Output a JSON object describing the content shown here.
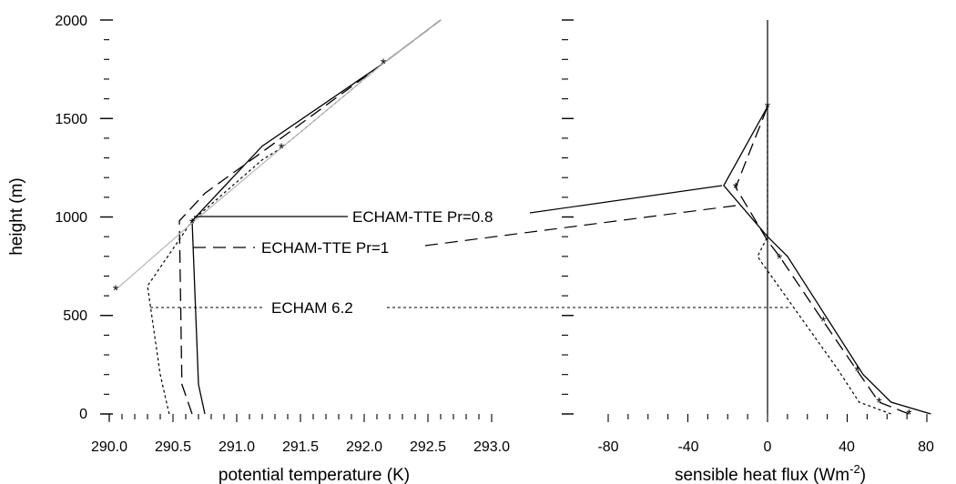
{
  "chart_data": [
    {
      "type": "line",
      "xlabel": "potential temperature (K)",
      "ylabel": "height (m)",
      "xlim": [
        290.0,
        293.0
      ],
      "ylim": [
        0,
        2000
      ],
      "xticks": [
        "290.0",
        "290.5",
        "291.0",
        "291.5",
        "292.0",
        "292.5",
        "293.0"
      ],
      "yticks": [
        "0",
        "500",
        "1000",
        "1500",
        "2000"
      ],
      "series": [
        {
          "name": "ECHAM-TTE Pr=0.8",
          "style": "solid",
          "points": [
            [
              290.75,
              0
            ],
            [
              290.7,
              150
            ],
            [
              290.65,
              980
            ],
            [
              290.75,
              1050
            ],
            [
              291.2,
              1360
            ],
            [
              292.15,
              1780
            ],
            [
              292.6,
              2000
            ]
          ]
        },
        {
          "name": "ECHAM-TTE Pr=1",
          "style": "dashed",
          "points": [
            [
              290.65,
              0
            ],
            [
              290.57,
              150
            ],
            [
              290.55,
              980
            ],
            [
              290.75,
              1120
            ],
            [
              291.2,
              1330
            ],
            [
              292.15,
              1780
            ],
            [
              292.6,
              2000
            ]
          ]
        },
        {
          "name": "ECHAM 6.2",
          "style": "dotted",
          "points": [
            [
              290.47,
              0
            ],
            [
              290.4,
              200
            ],
            [
              290.3,
              650
            ],
            [
              290.65,
              980
            ],
            [
              291.2,
              1290
            ],
            [
              291.35,
              1350
            ],
            [
              292.15,
              1780
            ],
            [
              292.6,
              2000
            ]
          ]
        },
        {
          "name": "",
          "style": "reference",
          "points": [
            [
              290.05,
              630
            ],
            [
              290.65,
              970
            ],
            [
              291.35,
              1350
            ],
            [
              292.15,
              1780
            ],
            [
              292.6,
              2000
            ]
          ]
        }
      ],
      "markers": [
        [
          290.05,
          630
        ],
        [
          290.65,
          970
        ],
        [
          291.35,
          1350
        ],
        [
          292.15,
          1780
        ]
      ]
    },
    {
      "type": "line",
      "xlabel": "sensible heat flux (Wm",
      "xlabel_sup": "-2",
      "xlabel_end": ")",
      "xlim": [
        -100,
        90
      ],
      "ylim": [
        0,
        2000
      ],
      "xticks": [
        "-80",
        "-40",
        "0",
        "40",
        "80"
      ],
      "series": [
        {
          "name": "ECHAM-TTE Pr=0.8",
          "style": "solid",
          "points": [
            [
              82,
              0
            ],
            [
              62,
              60
            ],
            [
              48,
              200
            ],
            [
              10,
              800
            ],
            [
              0,
              900
            ],
            [
              -22,
              1160
            ],
            [
              0,
              1560
            ]
          ]
        },
        {
          "name": "ECHAM-TTE Pr=1",
          "style": "dashed",
          "points": [
            [
              71,
              0
            ],
            [
              56,
              60
            ],
            [
              45,
              220
            ],
            [
              28,
              470
            ],
            [
              6,
              800
            ],
            [
              0,
              880
            ],
            [
              -16,
              1150
            ],
            [
              0,
              1560
            ]
          ]
        },
        {
          "name": "ECHAM 6.2",
          "style": "dotted",
          "points": [
            [
              62,
              0
            ],
            [
              46,
              60
            ],
            [
              35,
              230
            ],
            [
              16,
              500
            ],
            [
              -3,
              770
            ],
            [
              -5,
              800
            ],
            [
              0,
              900
            ],
            [
              0,
              1560
            ]
          ]
        }
      ],
      "markers": [
        [
          71,
          0
        ],
        [
          56,
          60
        ],
        [
          45,
          220
        ],
        [
          28,
          470
        ],
        [
          6,
          790
        ],
        [
          -16,
          1150
        ],
        [
          0,
          1560
        ]
      ]
    }
  ],
  "annotations": [
    "ECHAM-TTE Pr=0.8",
    "ECHAM-TTE Pr=1",
    "ECHAM 6.2"
  ]
}
